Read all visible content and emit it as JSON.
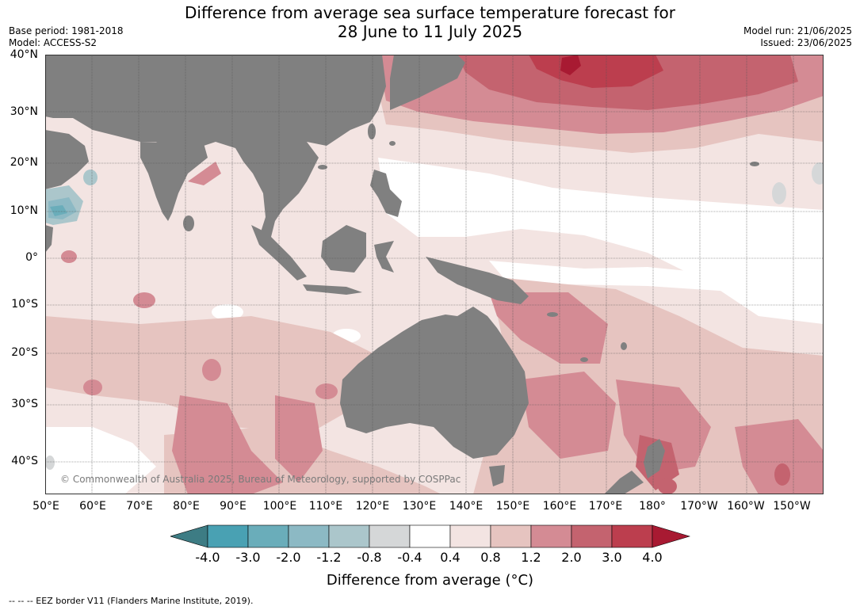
{
  "title": {
    "line1": "Difference from average sea surface temperature forecast for",
    "line2": "28 June to 11 July 2025"
  },
  "meta": {
    "base_period": "Base period: 1981-2018",
    "model": "Model: ACCESS-S2",
    "model_run": "Model run: 21/06/2025",
    "issued": "Issued: 23/06/2025"
  },
  "map": {
    "lat_labels": [
      "40°N",
      "30°N",
      "20°N",
      "10°N",
      "0°",
      "10°S",
      "20°S",
      "30°S",
      "40°S"
    ],
    "lon_labels": [
      "50°E",
      "60°E",
      "70°E",
      "80°E",
      "90°E",
      "100°E",
      "110°E",
      "120°E",
      "130°E",
      "140°E",
      "150°E",
      "160°E",
      "170°E",
      "180°",
      "170°W",
      "160°W",
      "150°W"
    ],
    "copyright": "© Commonwealth of Australia 2025, Bureau of Meteorology, supported by COSPPac",
    "land_color": "#808080",
    "ocean_base_color": "#f3e4e2"
  },
  "colorbar": {
    "ticks": [
      "-4.0",
      "-3.0",
      "-2.0",
      "-1.2",
      "-0.8",
      "-0.4",
      "0.4",
      "0.8",
      "1.2",
      "2.0",
      "3.0",
      "4.0"
    ],
    "colors": [
      "#3d7c84",
      "#49a1b3",
      "#6aadba",
      "#8cb9c4",
      "#abc6cb",
      "#d5d7d8",
      "#ffffff",
      "#f3e4e2",
      "#e6c4c0",
      "#d48b94",
      "#c4636f",
      "#bc3e4e",
      "#a81a32"
    ],
    "label": "Difference from average (°C)"
  },
  "footnote": "--  --  -- EEZ border V11 (Flanders Marine Institute, 2019)."
}
